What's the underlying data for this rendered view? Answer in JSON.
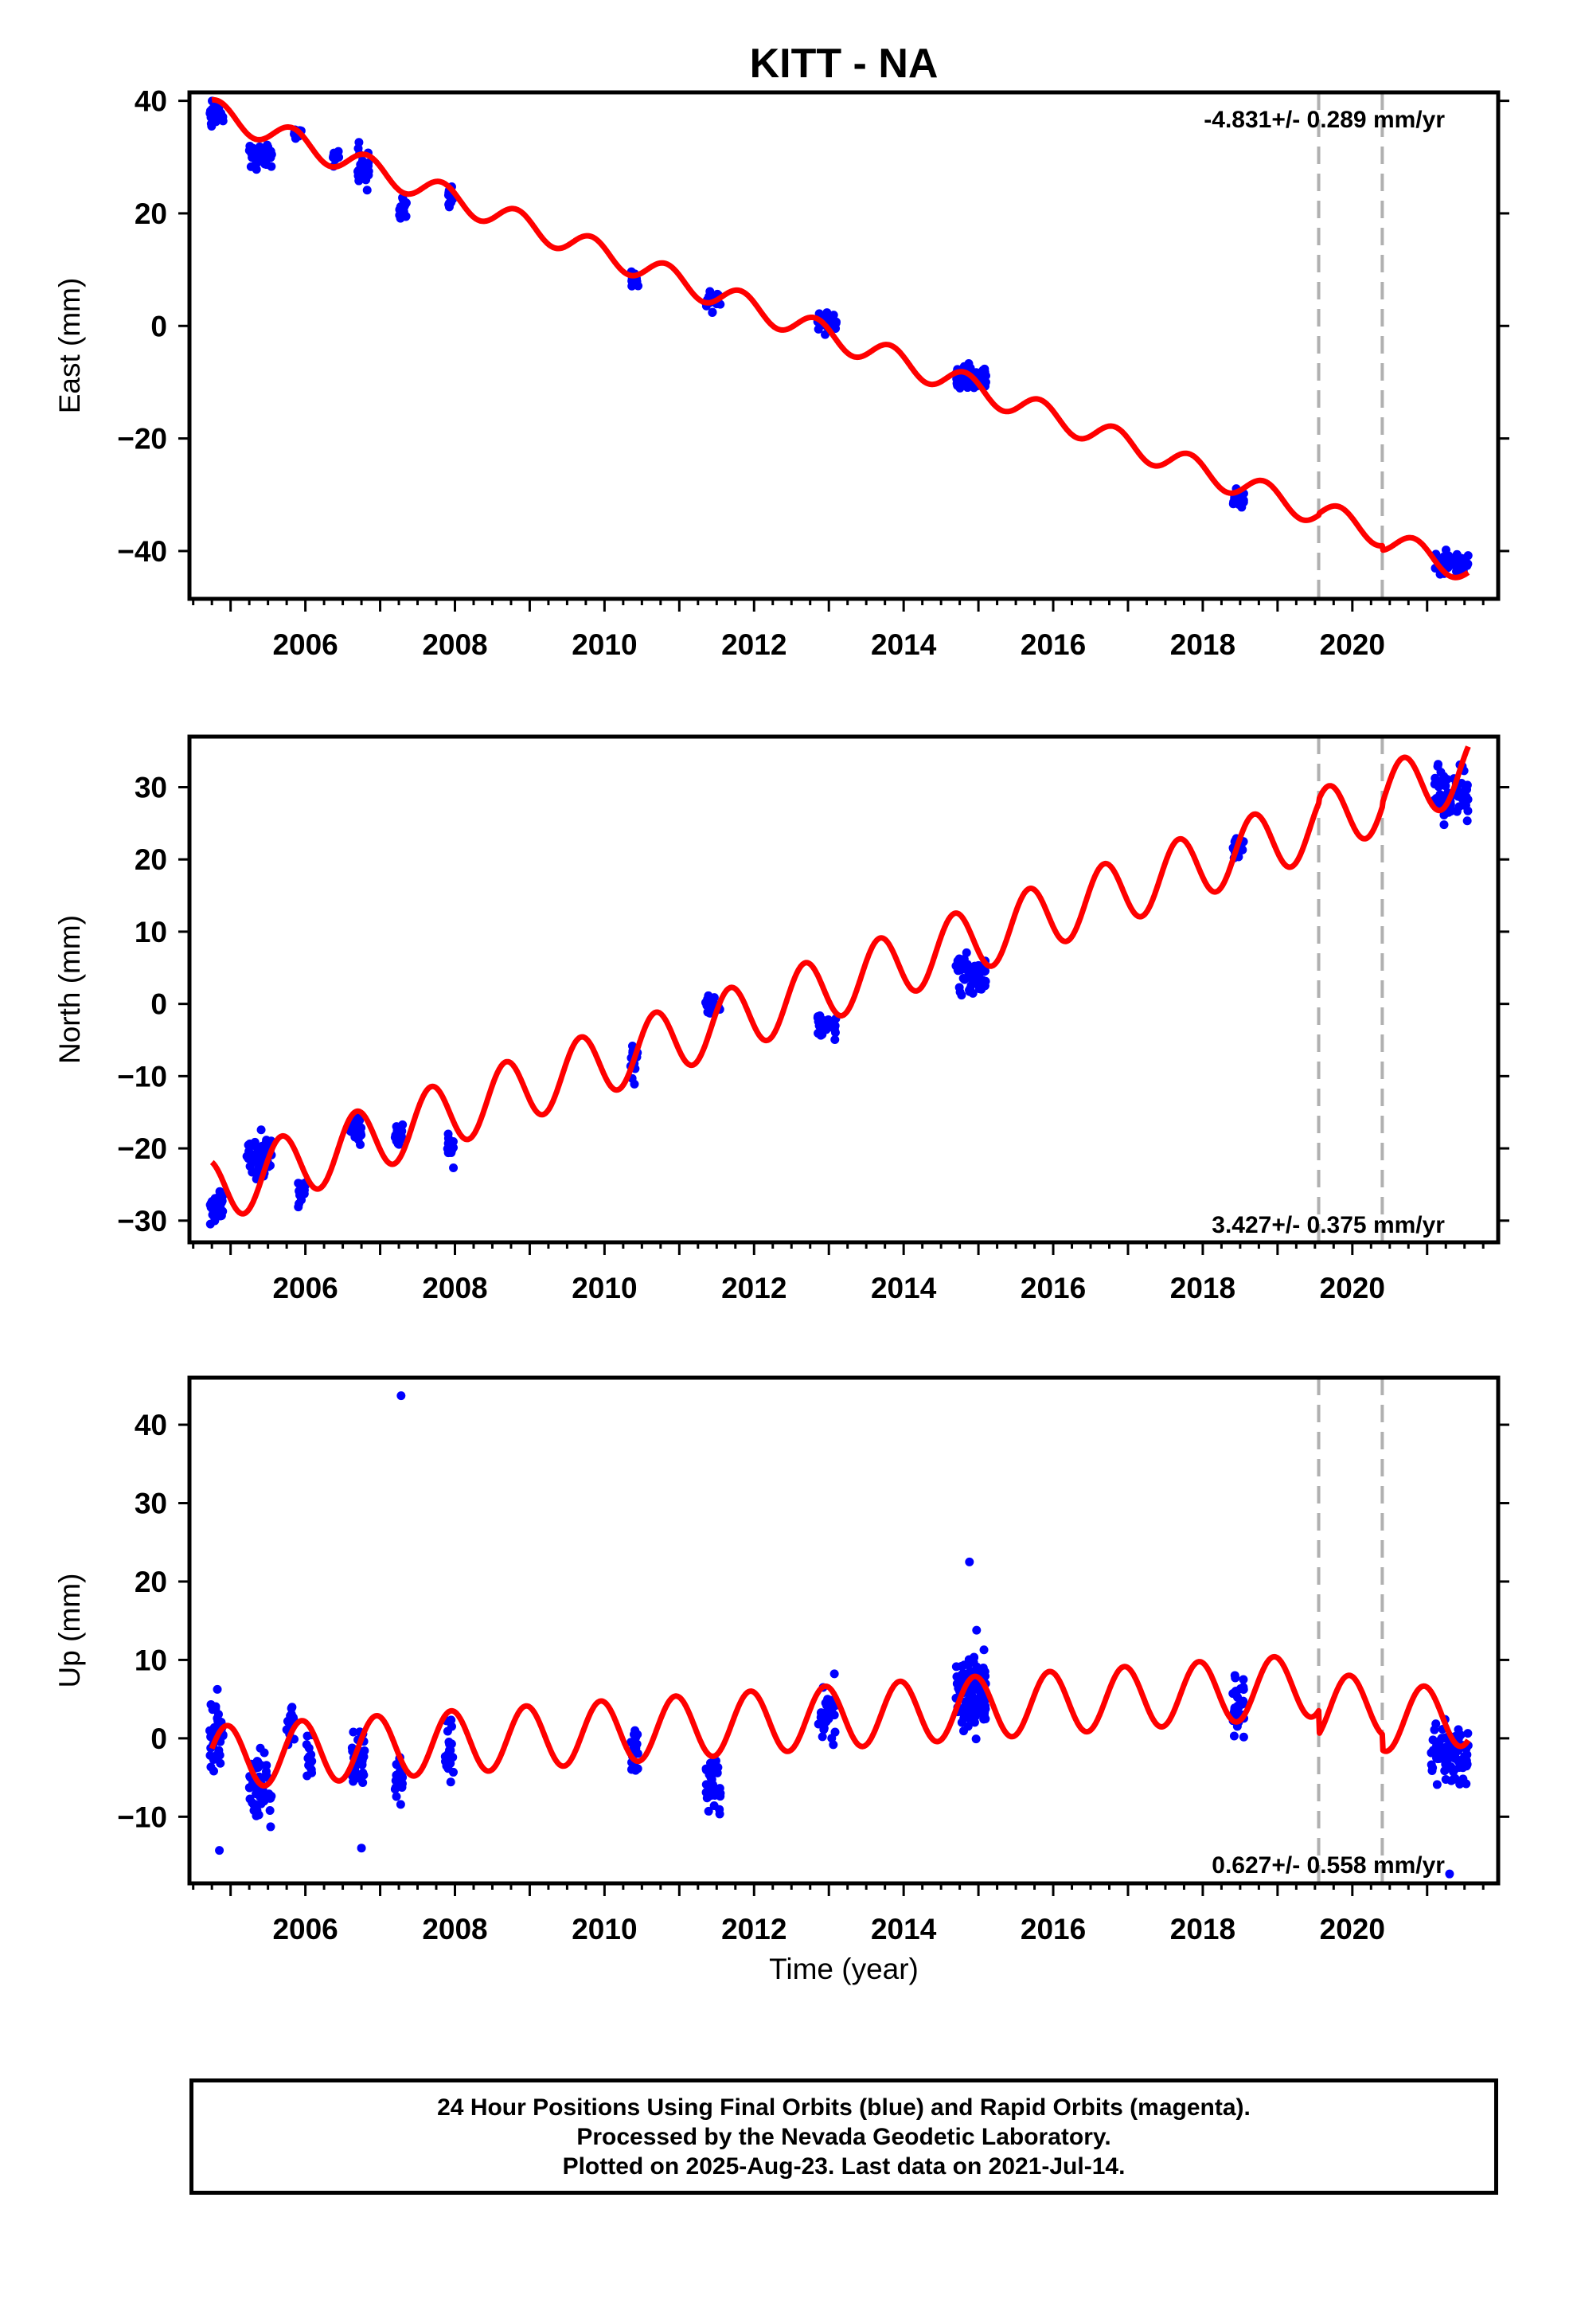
{
  "figure": {
    "title": "KITT - NA",
    "xlabel": "Time (year)"
  },
  "chart_data": [
    {
      "type": "scatter",
      "ylabel": "East (mm)",
      "rate_label": "-4.831+/- 0.289 mm/yr",
      "xlim": [
        2004.45,
        2021.95
      ],
      "ylim": [
        -48.5,
        41.5
      ],
      "yticks": [
        -40,
        -20,
        0,
        20,
        40
      ],
      "xticks": [
        2006,
        2008,
        2010,
        2012,
        2014,
        2016,
        2018,
        2020
      ],
      "vlines": [
        2019.55,
        2020.4
      ],
      "model": {
        "name": "model fit",
        "t0": 2004.75,
        "y0": 38.2,
        "rate": -4.831,
        "amp": 2.2,
        "phase": 1.1,
        "steps": [
          {
            "t": 2019.55,
            "dy": 0.3
          },
          {
            "t": 2020.4,
            "dy": -0.8
          }
        ]
      },
      "clusters": [
        {
          "start": 2004.72,
          "end": 2004.9,
          "center": 38.0,
          "spread": 2.0,
          "n": 30
        },
        {
          "start": 2005.25,
          "end": 2005.55,
          "center": 30.0,
          "spread": 2.5,
          "n": 45
        },
        {
          "start": 2005.85,
          "end": 2005.95,
          "center": 34.0,
          "spread": 1.0,
          "n": 10
        },
        {
          "start": 2006.35,
          "end": 2006.45,
          "center": 30.0,
          "spread": 1.2,
          "n": 10
        },
        {
          "start": 2006.7,
          "end": 2006.85,
          "center": 28.5,
          "spread": 2.5,
          "n": 25
        },
        {
          "start": 2007.25,
          "end": 2007.35,
          "center": 21.0,
          "spread": 2.0,
          "n": 20
        },
        {
          "start": 2007.9,
          "end": 2007.98,
          "center": 23.0,
          "spread": 2.0,
          "n": 15
        },
        {
          "start": 2010.35,
          "end": 2010.45,
          "center": 8.0,
          "spread": 1.5,
          "n": 15
        },
        {
          "start": 2011.35,
          "end": 2011.55,
          "center": 4.5,
          "spread": 2.0,
          "n": 25
        },
        {
          "start": 2012.85,
          "end": 2013.1,
          "center": 1.0,
          "spread": 1.5,
          "n": 30
        },
        {
          "start": 2014.7,
          "end": 2015.1,
          "center": -9.0,
          "spread": 2.0,
          "n": 60
        },
        {
          "start": 2018.4,
          "end": 2018.55,
          "center": -30.5,
          "spread": 1.5,
          "n": 25
        },
        {
          "start": 2021.1,
          "end": 2021.55,
          "center": -42.5,
          "spread": 1.8,
          "n": 50
        }
      ]
    },
    {
      "type": "scatter",
      "ylabel": "North (mm)",
      "rate_label": "3.427+/- 0.375 mm/yr",
      "xlim": [
        2004.45,
        2021.95
      ],
      "ylim": [
        -33,
        37
      ],
      "yticks": [
        -30,
        -20,
        -10,
        0,
        10,
        20,
        30
      ],
      "xticks": [
        2006,
        2008,
        2010,
        2012,
        2014,
        2016,
        2018,
        2020
      ],
      "vlines": [
        2019.55,
        2020.4
      ],
      "model": {
        "name": "model fit",
        "t0": 2004.75,
        "y0": -26.0,
        "rate": 3.427,
        "amp": 4.5,
        "phase": 2.0,
        "steps": [
          {
            "t": 2019.55,
            "dy": 0.5
          },
          {
            "t": 2020.4,
            "dy": 0.5
          }
        ]
      },
      "clusters": [
        {
          "start": 2004.72,
          "end": 2004.9,
          "center": -28.0,
          "spread": 2.5,
          "n": 35
        },
        {
          "start": 2005.2,
          "end": 2005.55,
          "center": -21.0,
          "spread": 3.0,
          "n": 50
        },
        {
          "start": 2005.9,
          "end": 2006.0,
          "center": -26.0,
          "spread": 2.0,
          "n": 15
        },
        {
          "start": 2006.6,
          "end": 2006.75,
          "center": -17.5,
          "spread": 2.0,
          "n": 25
        },
        {
          "start": 2007.2,
          "end": 2007.3,
          "center": -18.0,
          "spread": 2.0,
          "n": 20
        },
        {
          "start": 2007.9,
          "end": 2007.98,
          "center": -19.5,
          "spread": 1.8,
          "n": 15
        },
        {
          "start": 2010.35,
          "end": 2010.45,
          "center": -7.0,
          "spread": 2.5,
          "n": 15
        },
        {
          "start": 2011.35,
          "end": 2011.55,
          "center": 0.0,
          "spread": 1.5,
          "n": 25
        },
        {
          "start": 2012.85,
          "end": 2013.1,
          "center": -3.0,
          "spread": 1.5,
          "n": 30
        },
        {
          "start": 2014.7,
          "end": 2015.1,
          "center": 4.0,
          "spread": 2.5,
          "n": 60
        },
        {
          "start": 2018.4,
          "end": 2018.55,
          "center": 22.0,
          "spread": 2.0,
          "n": 25
        },
        {
          "start": 2021.1,
          "end": 2021.55,
          "center": 29.0,
          "spread": 4.0,
          "n": 60
        }
      ]
    },
    {
      "type": "scatter",
      "ylabel": "Up (mm)",
      "rate_label": "0.627+/- 0.558 mm/yr",
      "xlim": [
        2004.45,
        2021.95
      ],
      "ylim": [
        -18.5,
        46
      ],
      "yticks": [
        -10,
        0,
        10,
        20,
        30,
        40
      ],
      "xticks": [
        2006,
        2008,
        2010,
        2012,
        2014,
        2016,
        2018,
        2020
      ],
      "vlines": [
        2019.55,
        2020.4
      ],
      "model": {
        "name": "model fit",
        "t0": 2004.75,
        "y0": -2.5,
        "rate": 0.627,
        "amp": 4.0,
        "phase": 0.3,
        "steps": [
          {
            "t": 2019.55,
            "dy": -3.0
          },
          {
            "t": 2020.4,
            "dy": -2.0
          }
        ]
      },
      "clusters": [
        {
          "start": 2004.72,
          "end": 2004.9,
          "center": 1.0,
          "spread": 5.0,
          "n": 35
        },
        {
          "start": 2005.25,
          "end": 2005.55,
          "center": -6.0,
          "spread": 4.5,
          "n": 55
        },
        {
          "start": 2005.75,
          "end": 2005.85,
          "center": 2.0,
          "spread": 3.5,
          "n": 15
        },
        {
          "start": 2006.0,
          "end": 2006.1,
          "center": -3.0,
          "spread": 3.5,
          "n": 15
        },
        {
          "start": 2006.6,
          "end": 2006.8,
          "center": -3.0,
          "spread": 4.0,
          "n": 30
        },
        {
          "start": 2007.2,
          "end": 2007.3,
          "center": -5.0,
          "spread": 3.0,
          "n": 20
        },
        {
          "start": 2007.85,
          "end": 2007.98,
          "center": -1.0,
          "spread": 4.5,
          "n": 20
        },
        {
          "start": 2010.35,
          "end": 2010.45,
          "center": -2.0,
          "spread": 3.5,
          "n": 20
        },
        {
          "start": 2011.35,
          "end": 2011.55,
          "center": -6.0,
          "spread": 3.5,
          "n": 35
        },
        {
          "start": 2012.85,
          "end": 2013.1,
          "center": 3.0,
          "spread": 4.0,
          "n": 30
        },
        {
          "start": 2014.7,
          "end": 2015.1,
          "center": 6.0,
          "spread": 4.5,
          "n": 110
        },
        {
          "start": 2018.4,
          "end": 2018.55,
          "center": 4.0,
          "spread": 3.5,
          "n": 35
        },
        {
          "start": 2021.05,
          "end": 2021.55,
          "center": -2.0,
          "spread": 3.5,
          "n": 90
        }
      ],
      "points": [
        {
          "x": 2007.28,
          "y": 43.7
        },
        {
          "x": 2014.88,
          "y": 22.5
        },
        {
          "x": 2021.3,
          "y": -17.3
        },
        {
          "x": 2004.85,
          "y": -14.3
        },
        {
          "x": 2006.75,
          "y": -14.0
        }
      ]
    }
  ],
  "footer": {
    "line1": "24 Hour Positions Using Final Orbits (blue) and Rapid Orbits (magenta).",
    "line2": "Processed by the Nevada Geodetic Laboratory.",
    "line3": "Plotted on 2025-Aug-23. Last data on 2021-Jul-14."
  },
  "colors": {
    "data": "#0000ff",
    "model": "#ff0000",
    "vline": "#b0b0b0",
    "frame": "#000000"
  }
}
